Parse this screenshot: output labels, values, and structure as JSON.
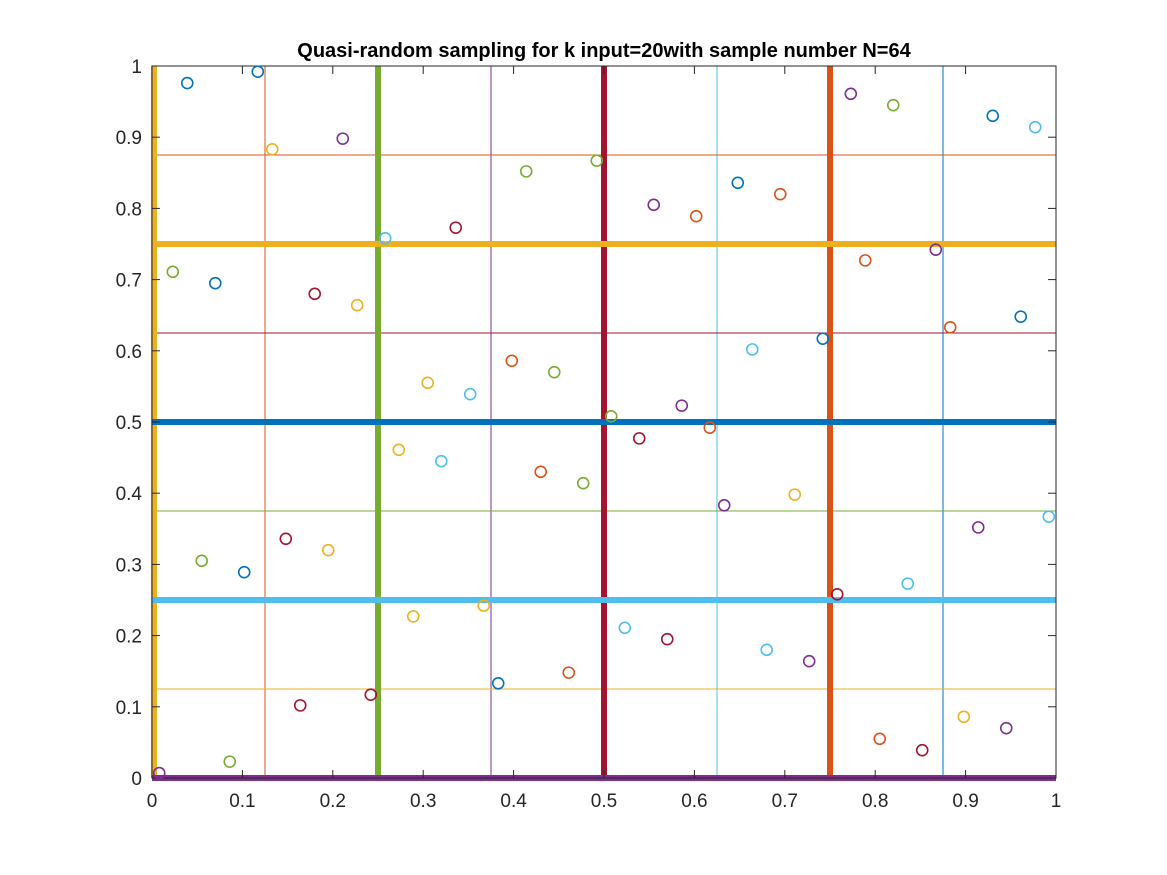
{
  "chart_data": {
    "type": "scatter",
    "title": "Quasi-random sampling for k input=20with sample number N=64",
    "xlabel": "",
    "ylabel": "",
    "xlim": [
      0,
      1
    ],
    "ylim": [
      0,
      1
    ],
    "grid": false,
    "x_ticks": [
      "0",
      "0.1",
      "0.2",
      "0.3",
      "0.4",
      "0.5",
      "0.6",
      "0.7",
      "0.8",
      "0.9",
      "1"
    ],
    "y_ticks": [
      "0",
      "0.1",
      "0.2",
      "0.3",
      "0.4",
      "0.5",
      "0.6",
      "0.7",
      "0.8",
      "0.9",
      "1"
    ],
    "colors": {
      "blue": "#0072BD",
      "orange": "#D95319",
      "yellow": "#EDB120",
      "purple": "#7E2F8E",
      "green": "#77AC30",
      "cyan": "#4DBEEE",
      "red": "#A2142F"
    },
    "vertical_lines": [
      {
        "x": 0.0,
        "color": "yellow",
        "weight": "thick"
      },
      {
        "x": 0.125,
        "color": "orange",
        "weight": "thin"
      },
      {
        "x": 0.25,
        "color": "green",
        "weight": "thick"
      },
      {
        "x": 0.375,
        "color": "purple",
        "weight": "thin"
      },
      {
        "x": 0.5,
        "color": "red",
        "weight": "thick"
      },
      {
        "x": 0.625,
        "color": "cyan",
        "weight": "thin"
      },
      {
        "x": 0.75,
        "color": "orange",
        "weight": "thick"
      },
      {
        "x": 0.875,
        "color": "blue",
        "weight": "thin"
      }
    ],
    "horizontal_lines": [
      {
        "y": 0.0,
        "color": "purple",
        "weight": "thick"
      },
      {
        "y": 0.125,
        "color": "yellow",
        "weight": "thin"
      },
      {
        "y": 0.25,
        "color": "cyan",
        "weight": "thick"
      },
      {
        "y": 0.375,
        "color": "green",
        "weight": "thin"
      },
      {
        "y": 0.5,
        "color": "blue",
        "weight": "thick"
      },
      {
        "y": 0.625,
        "color": "red",
        "weight": "thin"
      },
      {
        "y": 0.75,
        "color": "yellow",
        "weight": "thick"
      },
      {
        "y": 0.875,
        "color": "orange",
        "weight": "thin"
      }
    ],
    "points": [
      {
        "x": 0.008,
        "y": 0.007,
        "color": "purple"
      },
      {
        "x": 0.039,
        "y": 0.976,
        "color": "blue"
      },
      {
        "x": 0.117,
        "y": 0.992,
        "color": "blue"
      },
      {
        "x": 0.133,
        "y": 0.883,
        "color": "yellow"
      },
      {
        "x": 0.211,
        "y": 0.898,
        "color": "purple"
      },
      {
        "x": 0.023,
        "y": 0.711,
        "color": "green"
      },
      {
        "x": 0.07,
        "y": 0.695,
        "color": "blue"
      },
      {
        "x": 0.18,
        "y": 0.68,
        "color": "red"
      },
      {
        "x": 0.227,
        "y": 0.664,
        "color": "yellow"
      },
      {
        "x": 0.258,
        "y": 0.758,
        "color": "cyan"
      },
      {
        "x": 0.336,
        "y": 0.773,
        "color": "red"
      },
      {
        "x": 0.414,
        "y": 0.852,
        "color": "green"
      },
      {
        "x": 0.492,
        "y": 0.867,
        "color": "green"
      },
      {
        "x": 0.555,
        "y": 0.805,
        "color": "purple"
      },
      {
        "x": 0.602,
        "y": 0.789,
        "color": "orange"
      },
      {
        "x": 0.648,
        "y": 0.836,
        "color": "blue"
      },
      {
        "x": 0.695,
        "y": 0.82,
        "color": "orange"
      },
      {
        "x": 0.773,
        "y": 0.961,
        "color": "purple"
      },
      {
        "x": 0.82,
        "y": 0.945,
        "color": "green"
      },
      {
        "x": 0.93,
        "y": 0.93,
        "color": "blue"
      },
      {
        "x": 0.977,
        "y": 0.914,
        "color": "cyan"
      },
      {
        "x": 0.789,
        "y": 0.727,
        "color": "orange"
      },
      {
        "x": 0.867,
        "y": 0.742,
        "color": "purple"
      },
      {
        "x": 0.883,
        "y": 0.633,
        "color": "orange"
      },
      {
        "x": 0.961,
        "y": 0.648,
        "color": "blue"
      },
      {
        "x": 0.742,
        "y": 0.617,
        "color": "blue"
      },
      {
        "x": 0.664,
        "y": 0.602,
        "color": "cyan"
      },
      {
        "x": 0.305,
        "y": 0.555,
        "color": "yellow"
      },
      {
        "x": 0.352,
        "y": 0.539,
        "color": "cyan"
      },
      {
        "x": 0.398,
        "y": 0.586,
        "color": "orange"
      },
      {
        "x": 0.445,
        "y": 0.57,
        "color": "green"
      },
      {
        "x": 0.508,
        "y": 0.508,
        "color": "green"
      },
      {
        "x": 0.586,
        "y": 0.523,
        "color": "purple"
      },
      {
        "x": 0.539,
        "y": 0.477,
        "color": "red"
      },
      {
        "x": 0.617,
        "y": 0.492,
        "color": "orange"
      },
      {
        "x": 0.273,
        "y": 0.461,
        "color": "yellow"
      },
      {
        "x": 0.32,
        "y": 0.445,
        "color": "cyan"
      },
      {
        "x": 0.43,
        "y": 0.43,
        "color": "orange"
      },
      {
        "x": 0.477,
        "y": 0.414,
        "color": "green"
      },
      {
        "x": 0.633,
        "y": 0.383,
        "color": "purple"
      },
      {
        "x": 0.711,
        "y": 0.398,
        "color": "yellow"
      },
      {
        "x": 0.914,
        "y": 0.352,
        "color": "purple"
      },
      {
        "x": 0.992,
        "y": 0.367,
        "color": "cyan"
      },
      {
        "x": 0.055,
        "y": 0.305,
        "color": "green"
      },
      {
        "x": 0.102,
        "y": 0.289,
        "color": "blue"
      },
      {
        "x": 0.148,
        "y": 0.336,
        "color": "red"
      },
      {
        "x": 0.195,
        "y": 0.32,
        "color": "yellow"
      },
      {
        "x": 0.836,
        "y": 0.273,
        "color": "cyan"
      },
      {
        "x": 0.758,
        "y": 0.258,
        "color": "red"
      },
      {
        "x": 0.367,
        "y": 0.242,
        "color": "yellow"
      },
      {
        "x": 0.289,
        "y": 0.227,
        "color": "yellow"
      },
      {
        "x": 0.523,
        "y": 0.211,
        "color": "cyan"
      },
      {
        "x": 0.57,
        "y": 0.195,
        "color": "red"
      },
      {
        "x": 0.68,
        "y": 0.18,
        "color": "cyan"
      },
      {
        "x": 0.727,
        "y": 0.164,
        "color": "purple"
      },
      {
        "x": 0.461,
        "y": 0.148,
        "color": "orange"
      },
      {
        "x": 0.383,
        "y": 0.133,
        "color": "blue"
      },
      {
        "x": 0.242,
        "y": 0.117,
        "color": "red"
      },
      {
        "x": 0.164,
        "y": 0.102,
        "color": "red"
      },
      {
        "x": 0.898,
        "y": 0.086,
        "color": "yellow"
      },
      {
        "x": 0.945,
        "y": 0.07,
        "color": "purple"
      },
      {
        "x": 0.805,
        "y": 0.055,
        "color": "orange"
      },
      {
        "x": 0.852,
        "y": 0.039,
        "color": "red"
      },
      {
        "x": 0.086,
        "y": 0.023,
        "color": "green"
      }
    ]
  }
}
